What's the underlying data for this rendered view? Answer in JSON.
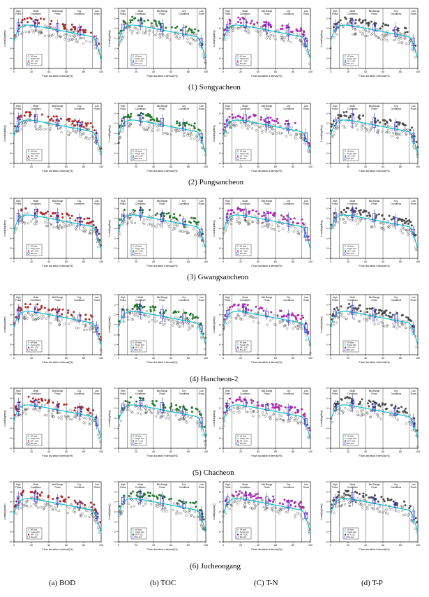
{
  "figure": {
    "rows": [
      {
        "caption": "(1)  Songyacheon"
      },
      {
        "caption": "(2)  Pungsancheon"
      },
      {
        "caption": "(3)  Gwangsancheon"
      },
      {
        "caption": "(4)  Hancheon-2"
      },
      {
        "caption": "(5)  Chacheon"
      },
      {
        "caption": "(6)  Jucheongang"
      }
    ],
    "columns": [
      {
        "caption": "(a)  BOD",
        "color": "#d42020"
      },
      {
        "caption": "(b)  TOC",
        "color": "#1e8a28"
      },
      {
        "caption": "(C)  T-N",
        "color": "#d020d0"
      },
      {
        "caption": "(d)  T-P",
        "color": "#505050"
      }
    ],
    "zone_labels": [
      "High Flows",
      "Moist Conditions",
      "Mid-Range Flows",
      "Dry Conditions",
      "Low Flows"
    ],
    "zone_bounds": [
      0,
      10,
      40,
      60,
      90,
      100
    ],
    "xlabel": "Flow duration interval(%)",
    "ylabel": "Load(kg/day)",
    "x_ticks": [
      "0",
      "20",
      "40",
      "60",
      "80",
      "100"
    ],
    "legend": [
      "WI data",
      "Target LDC",
      "WI > LDC",
      "Box plot"
    ],
    "colors": {
      "target_curve": "#00bcd4",
      "box": "#2020c8",
      "observed_hollow": "#333333"
    }
  },
  "chart_data": {
    "type": "scatter",
    "description_layout": "6 stations x 4 pollutants grid of load duration curves",
    "x": {
      "label": "Flow duration interval(%)",
      "range": [
        0,
        100
      ],
      "ticks": [
        0,
        20,
        40,
        60,
        80,
        100
      ]
    },
    "y": {
      "label": "Load(kg/day)",
      "scale": "log"
    },
    "stations": [
      "Songyacheon",
      "Pungsancheon",
      "Gwangsancheon",
      "Hancheon-2",
      "Chacheon",
      "Jucheongang"
    ],
    "pollutants": [
      "BOD",
      "TOC",
      "T-N",
      "T-P"
    ],
    "zones": [
      {
        "name": "High Flows",
        "range": [
          0,
          10
        ]
      },
      {
        "name": "Moist Conditions",
        "range": [
          10,
          40
        ]
      },
      {
        "name": "Mid-Range Flows",
        "range": [
          40,
          60
        ]
      },
      {
        "name": "Dry Conditions",
        "range": [
          60,
          90
        ]
      },
      {
        "name": "Low Flows",
        "range": [
          90,
          100
        ]
      }
    ],
    "series": [
      {
        "name": "WI data"
      },
      {
        "name": "Target LDC"
      },
      {
        "name": "WI > LDC"
      },
      {
        "name": "Box plot"
      }
    ]
  }
}
